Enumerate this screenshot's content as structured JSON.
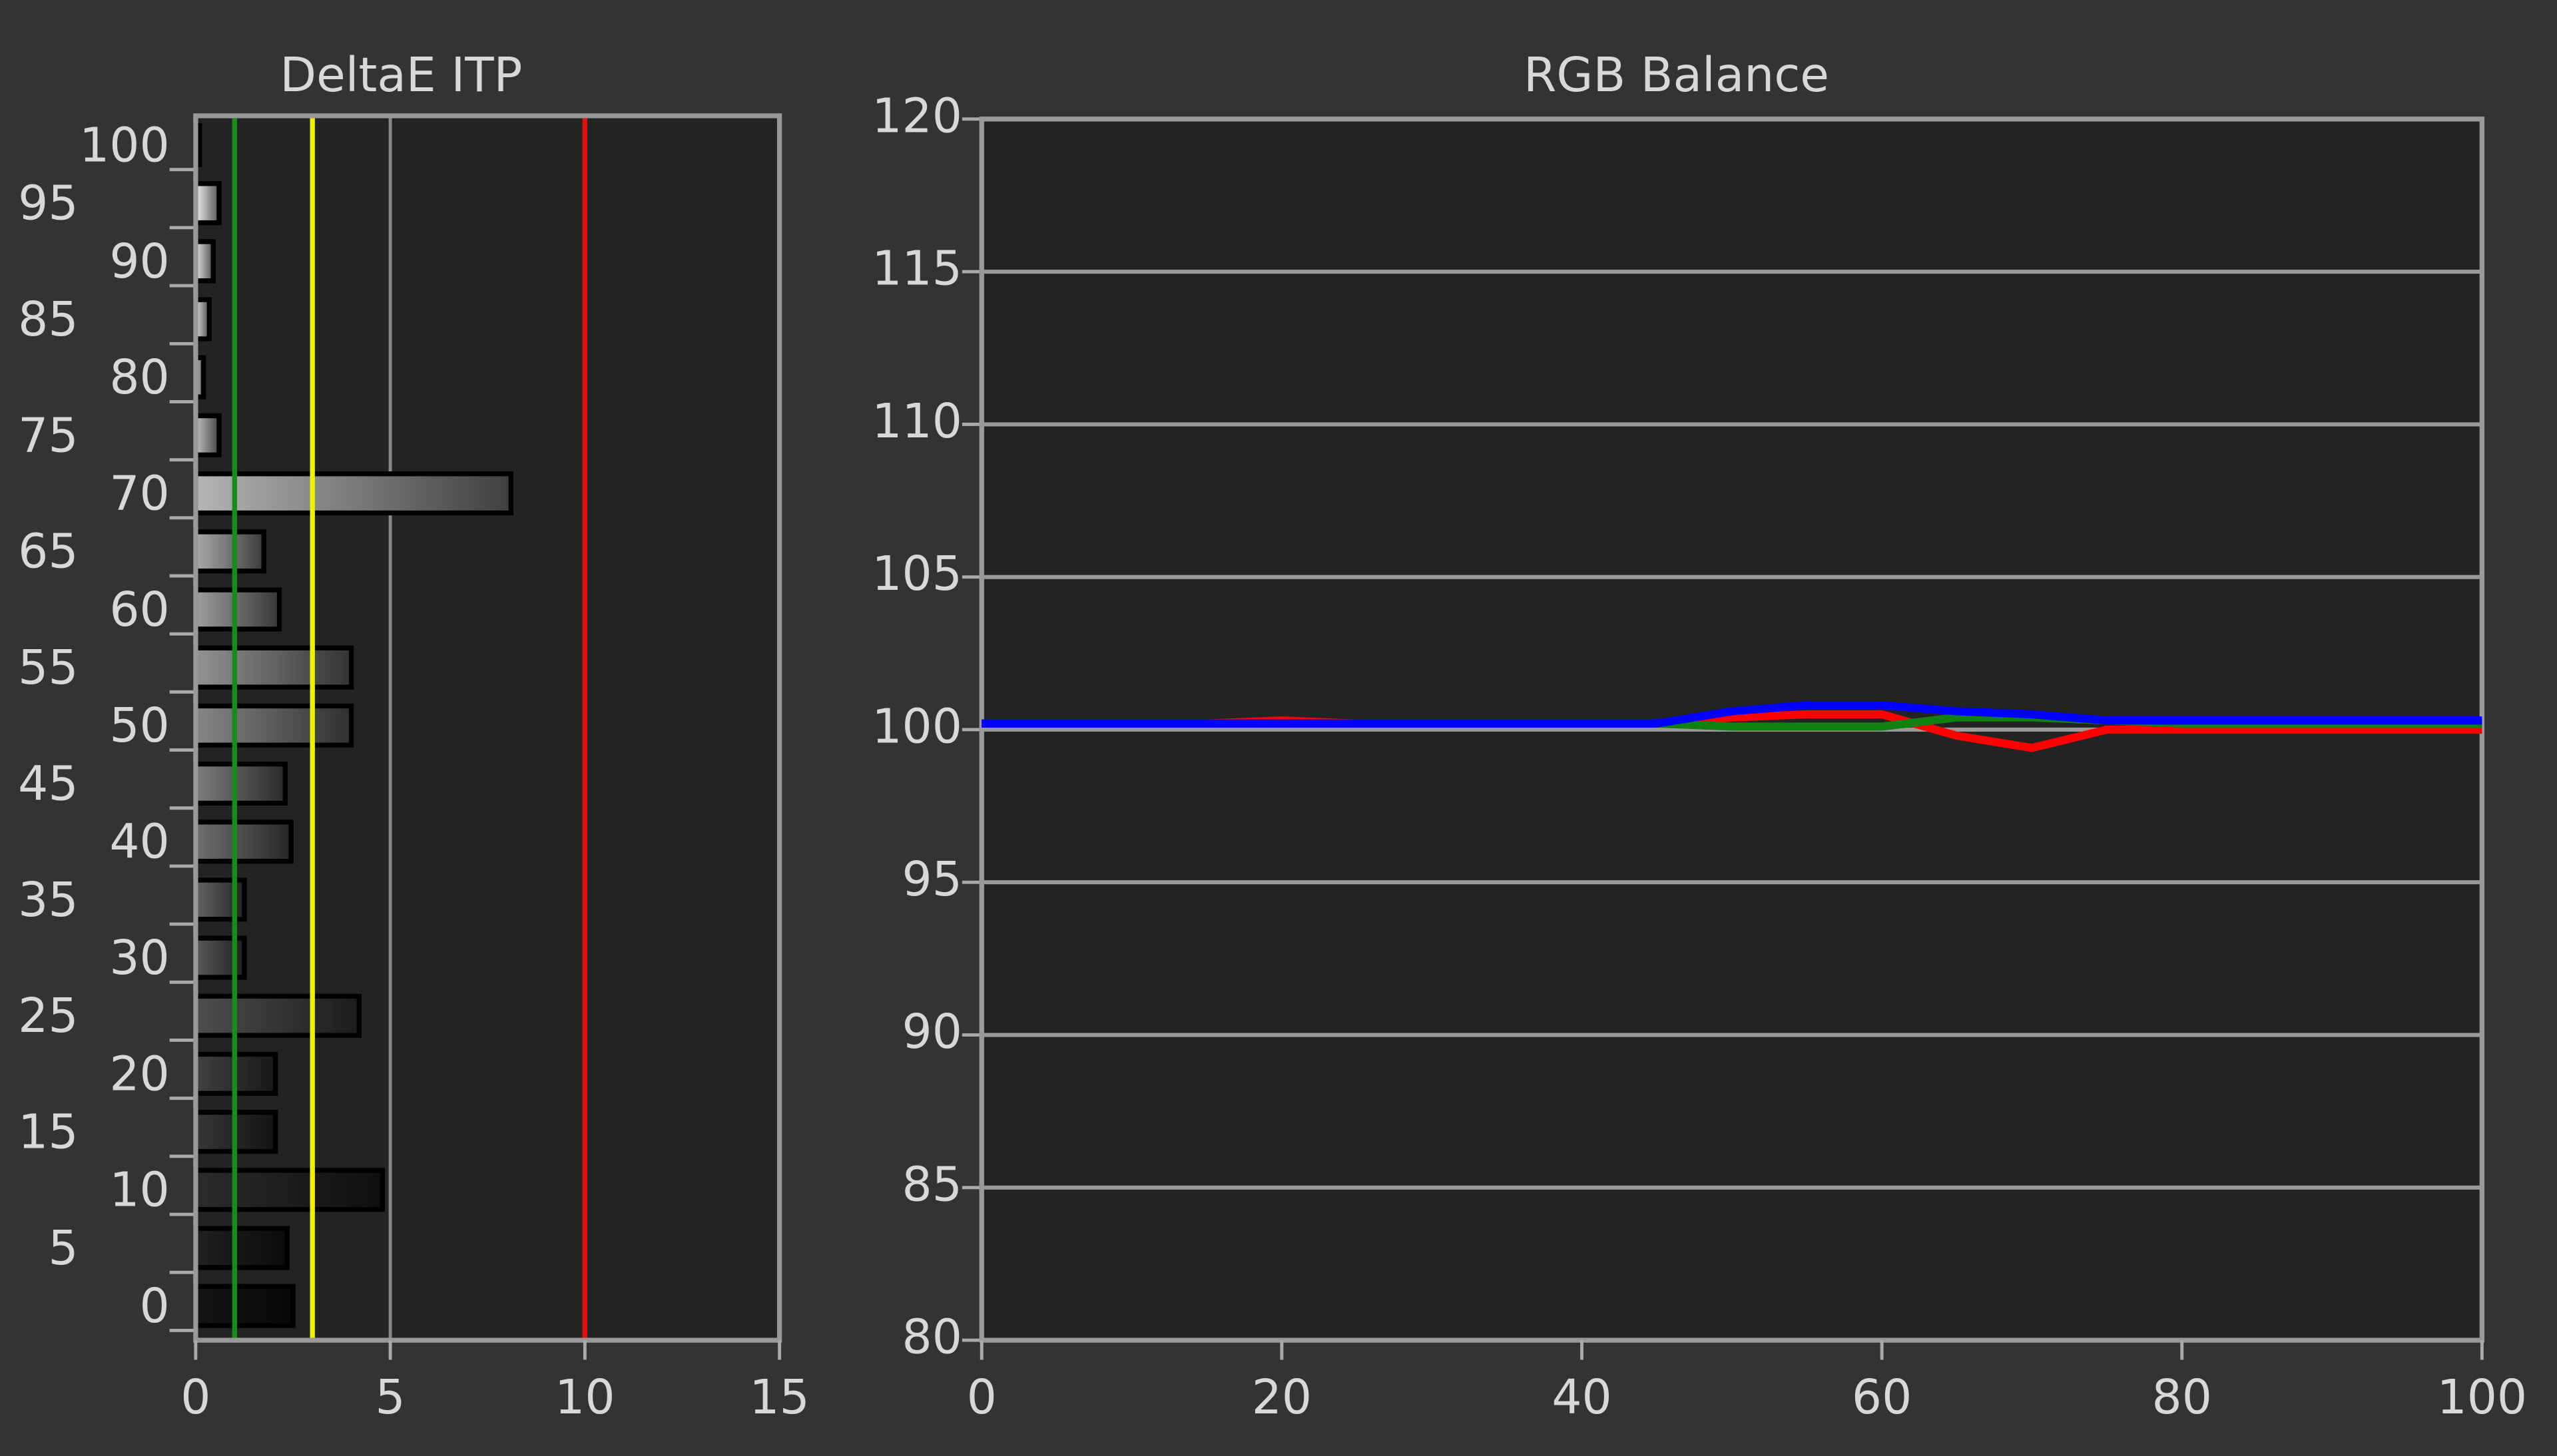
{
  "chart_data": [
    {
      "type": "hbar",
      "title": "DeltaE ITP",
      "categories": [
        0,
        5,
        10,
        15,
        20,
        25,
        30,
        35,
        40,
        45,
        50,
        55,
        60,
        65,
        70,
        75,
        80,
        85,
        90,
        95,
        100
      ],
      "values": [
        2.5,
        2.35,
        4.8,
        2.05,
        2.05,
        4.2,
        1.25,
        1.25,
        2.45,
        2.3,
        4.0,
        4.0,
        2.15,
        1.75,
        8.1,
        0.6,
        0.2,
        0.35,
        0.45,
        0.6,
        0.1
      ],
      "xlim": [
        0,
        15
      ],
      "xticks": [
        0,
        5,
        10,
        15
      ],
      "reference_lines": [
        {
          "value": 1,
          "color": "#1a8a1a"
        },
        {
          "value": 3,
          "color": "#f0f000"
        },
        {
          "value": 10,
          "color": "#e01010"
        }
      ],
      "grid": true
    },
    {
      "type": "line",
      "title": "RGB Balance",
      "x": [
        0,
        5,
        10,
        15,
        20,
        25,
        30,
        35,
        40,
        45,
        50,
        55,
        60,
        65,
        70,
        75,
        80,
        85,
        90,
        95,
        100
      ],
      "series": [
        {
          "name": "Red",
          "color": "#ff0000",
          "values": [
            100.2,
            100.2,
            100.2,
            100.2,
            100.3,
            100.2,
            100.2,
            100.2,
            100.2,
            100.2,
            100.4,
            100.5,
            100.5,
            99.8,
            99.4,
            100.0,
            100.0,
            100.0,
            100.0,
            100.0,
            100.0
          ]
        },
        {
          "name": "Green",
          "color": "#108010",
          "values": [
            100.2,
            100.2,
            100.2,
            100.2,
            100.2,
            100.2,
            100.2,
            100.2,
            100.2,
            100.2,
            100.1,
            100.1,
            100.1,
            100.4,
            100.4,
            100.3,
            100.2,
            100.2,
            100.2,
            100.2,
            100.2
          ]
        },
        {
          "name": "Blue",
          "color": "#0000ff",
          "values": [
            100.2,
            100.2,
            100.2,
            100.2,
            100.2,
            100.2,
            100.2,
            100.2,
            100.2,
            100.2,
            100.6,
            100.8,
            100.8,
            100.6,
            100.5,
            100.3,
            100.3,
            100.3,
            100.3,
            100.3,
            100.3
          ]
        }
      ],
      "xlim": [
        0,
        100
      ],
      "xticks": [
        0,
        20,
        40,
        60,
        80,
        100
      ],
      "ylim": [
        80,
        120
      ],
      "yticks": [
        80,
        85,
        90,
        95,
        100,
        105,
        110,
        115,
        120
      ],
      "grid": true
    }
  ]
}
